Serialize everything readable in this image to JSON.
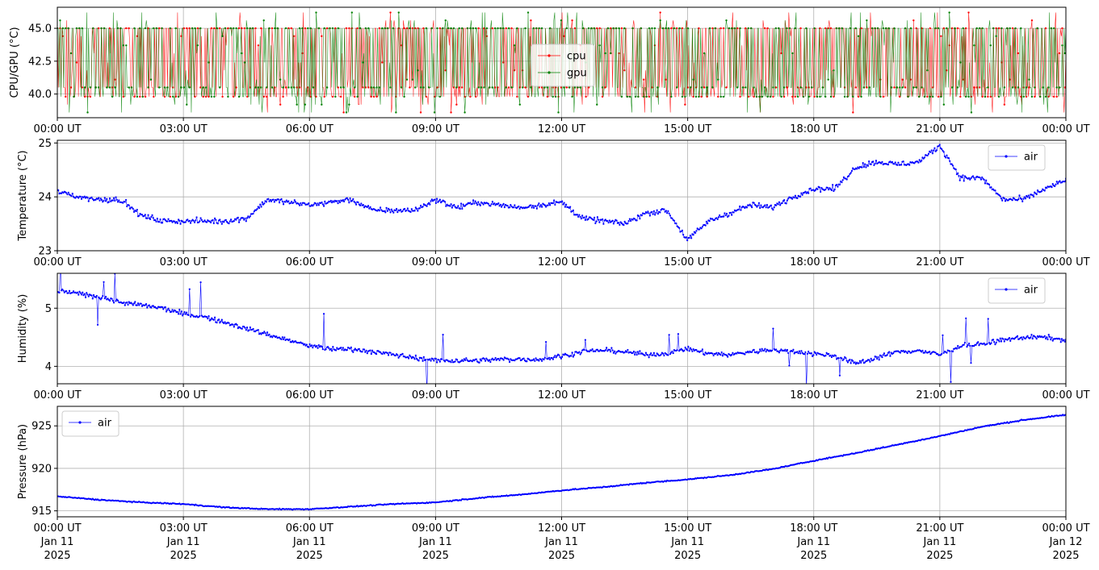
{
  "x_tick_labels": [
    "00:00 UT",
    "03:00 UT",
    "06:00 UT",
    "09:00 UT",
    "12:00 UT",
    "15:00 UT",
    "18:00 UT",
    "21:00 UT",
    "00:00 UT"
  ],
  "x_date_labels": [
    [
      "Jan 11",
      "2025"
    ],
    [
      "Jan 11",
      "2025"
    ],
    [
      "Jan 11",
      "2025"
    ],
    [
      "Jan 11",
      "2025"
    ],
    [
      "Jan 11",
      "2025"
    ],
    [
      "Jan 11",
      "2025"
    ],
    [
      "Jan 11",
      "2025"
    ],
    [
      "Jan 11",
      "2025"
    ],
    [
      "Jan 12",
      "2025"
    ]
  ],
  "chart_data": [
    {
      "type": "line",
      "ylabel": "CPU/GPU (°C)",
      "ylim": [
        38.2,
        46.6
      ],
      "yticks": [
        40.0,
        42.5,
        45.0
      ],
      "ytick_labels": [
        "40.0",
        "42.5",
        "45.0"
      ],
      "grid": true,
      "legend": "top-center",
      "x_range": [
        "2025-01-11 00:00",
        "2025-01-12 00:00"
      ],
      "series": [
        {
          "name": "cpu",
          "color": "#ff0000",
          "levels": [
            38.6,
            39.2,
            39.8,
            40.5,
            41.1,
            41.8,
            42.4,
            43.1,
            43.7,
            44.4,
            45.0,
            45.6,
            46.2
          ],
          "typical_range": [
            39.8,
            45.0
          ]
        },
        {
          "name": "gpu",
          "color": "#008000",
          "levels": [
            38.6,
            39.2,
            39.8,
            40.5,
            41.1,
            41.8,
            42.4,
            43.1,
            43.7,
            44.4,
            45.0,
            45.6,
            46.2
          ],
          "typical_range": [
            39.8,
            45.0
          ]
        }
      ]
    },
    {
      "type": "line",
      "ylabel": "Temperature (°C)",
      "ylim": [
        23.0,
        25.05
      ],
      "yticks": [
        23,
        24,
        25
      ],
      "ytick_labels": [
        "23",
        "24",
        "25"
      ],
      "grid": true,
      "legend": "top-right",
      "series": [
        {
          "name": "air",
          "color": "#0000ff",
          "x_hours": [
            0,
            0.5,
            1,
            1.5,
            2,
            2.5,
            3,
            3.5,
            4,
            4.5,
            5,
            5.5,
            6,
            6.5,
            7,
            7.5,
            8,
            8.5,
            9,
            9.5,
            10,
            10.5,
            11,
            11.5,
            12,
            12.5,
            13,
            13.5,
            14,
            14.5,
            15,
            15.5,
            16,
            16.5,
            17,
            17.5,
            18,
            18.5,
            19,
            19.5,
            20,
            20.5,
            21,
            21.5,
            22,
            22.5,
            23,
            23.5,
            24
          ],
          "values": [
            24.1,
            24.0,
            23.95,
            23.95,
            23.65,
            23.55,
            23.55,
            23.55,
            23.55,
            23.6,
            23.95,
            23.9,
            23.85,
            23.9,
            23.95,
            23.75,
            23.75,
            23.75,
            23.95,
            23.8,
            23.9,
            23.85,
            23.8,
            23.85,
            23.9,
            23.6,
            23.55,
            23.5,
            23.7,
            23.75,
            23.2,
            23.55,
            23.7,
            23.85,
            23.8,
            24.0,
            24.15,
            24.15,
            24.55,
            24.65,
            24.6,
            24.65,
            24.95,
            24.35,
            24.35,
            23.95,
            23.95,
            24.15,
            24.3
          ]
        }
      ]
    },
    {
      "type": "line",
      "ylabel": "Humidity (%)",
      "ylim": [
        3.7,
        5.6
      ],
      "yticks": [
        4,
        5
      ],
      "ytick_labels": [
        "4",
        "5"
      ],
      "grid": true,
      "legend": "top-right",
      "series": [
        {
          "name": "air",
          "color": "#0000ff",
          "x_hours": [
            0,
            0.5,
            1,
            1.5,
            2,
            2.5,
            3,
            3.5,
            4,
            4.5,
            5,
            5.5,
            6,
            6.5,
            7,
            7.5,
            8,
            8.5,
            9,
            9.5,
            10,
            10.5,
            11,
            11.5,
            12,
            12.5,
            13,
            13.5,
            14,
            14.5,
            15,
            15.5,
            16,
            16.5,
            17,
            17.5,
            18,
            18.5,
            19,
            19.5,
            20,
            20.5,
            21,
            21.5,
            22,
            22.5,
            23,
            23.5,
            24
          ],
          "values": [
            5.3,
            5.25,
            5.2,
            5.1,
            5.05,
            5.0,
            4.9,
            4.85,
            4.75,
            4.65,
            4.55,
            4.45,
            4.35,
            4.3,
            4.3,
            4.25,
            4.2,
            4.15,
            4.1,
            4.1,
            4.1,
            4.12,
            4.12,
            4.12,
            4.18,
            4.25,
            4.28,
            4.25,
            4.2,
            4.22,
            4.3,
            4.22,
            4.2,
            4.25,
            4.28,
            4.25,
            4.22,
            4.18,
            4.05,
            4.15,
            4.25,
            4.27,
            4.2,
            4.35,
            4.38,
            4.45,
            4.5,
            4.5,
            4.45
          ]
        }
      ]
    },
    {
      "type": "line",
      "ylabel": "Pressure (hPa)",
      "ylim": [
        914.3,
        927.3
      ],
      "yticks": [
        915,
        920,
        925
      ],
      "ytick_labels": [
        "915",
        "920",
        "925"
      ],
      "grid": true,
      "legend": "top-left",
      "series": [
        {
          "name": "air",
          "color": "#0000ff",
          "x_hours": [
            0,
            1,
            2,
            3,
            4,
            5,
            6,
            7,
            8,
            9,
            10,
            11,
            12,
            13,
            14,
            15,
            16,
            17,
            18,
            19,
            20,
            21,
            22,
            23,
            24
          ],
          "values": [
            916.7,
            916.3,
            916.0,
            915.8,
            915.4,
            915.2,
            915.2,
            915.5,
            915.8,
            916.0,
            916.5,
            916.9,
            917.4,
            917.8,
            918.3,
            918.7,
            919.2,
            919.9,
            920.9,
            921.8,
            922.8,
            923.8,
            924.9,
            925.7,
            926.3
          ]
        }
      ]
    }
  ]
}
